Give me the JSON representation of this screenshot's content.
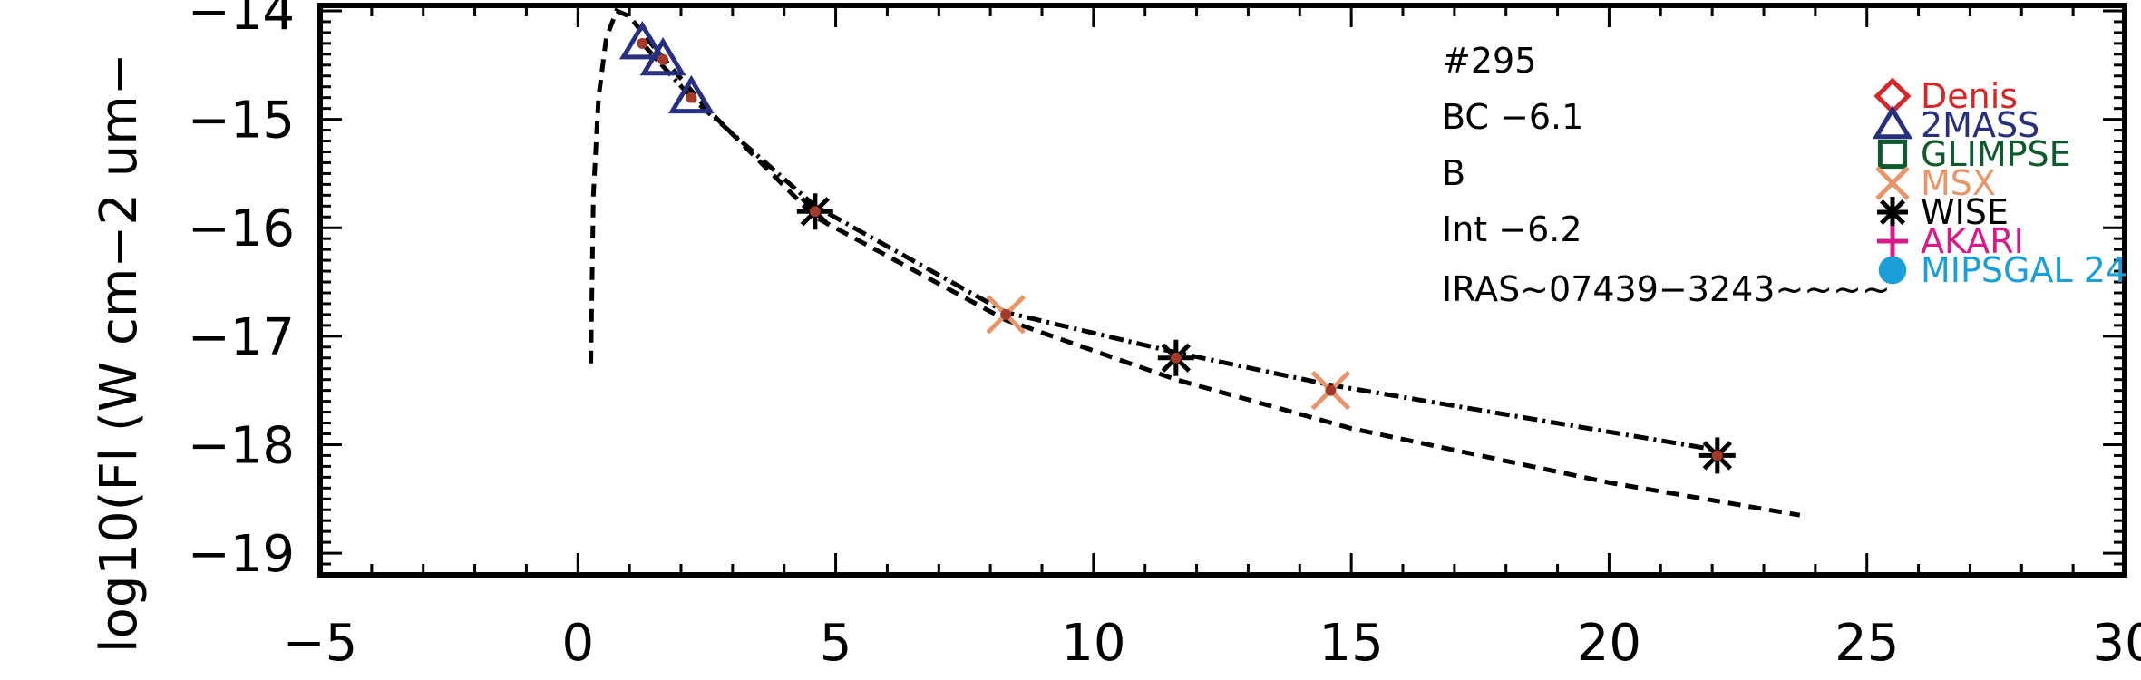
{
  "chart_data": {
    "type": "scatter",
    "title": "",
    "xlabel": "",
    "ylabel": "log10(Fl (W cm−2 um−",
    "xlim": [
      -5,
      30
    ],
    "ylim": [
      -19.2,
      -13.95
    ],
    "x_ticks": [
      "−5",
      "0",
      "5",
      "10",
      "15",
      "20",
      "25",
      "30"
    ],
    "y_ticks": [
      "−14",
      "−15",
      "−16",
      "−17",
      "−18",
      "−19"
    ],
    "annotations": [
      "#295",
      "BC −6.1",
      "B",
      "Int −6.2",
      "IRAS~07439−3243~~~~"
    ],
    "legend_position": "right",
    "legend": [
      {
        "name": "Denis",
        "marker": "diamond",
        "color": "#d62728"
      },
      {
        "name": "2MASS",
        "marker": "triangle",
        "color": "#27307f"
      },
      {
        "name": "GLIMPSE",
        "marker": "square",
        "color": "#0f5a2c"
      },
      {
        "name": "MSX",
        "marker": "x",
        "color": "#e8956a"
      },
      {
        "name": "WISE",
        "marker": "asterisk",
        "color": "#000000"
      },
      {
        "name": "AKARI",
        "marker": "plus",
        "color": "#d81b8a"
      },
      {
        "name": "MIPSGAL 24",
        "marker": "circle",
        "color": "#1a9fd8"
      }
    ],
    "series": [
      {
        "name": "2MASS",
        "marker": "triangle",
        "color": "#27307f",
        "points": [
          [
            1.25,
            -14.3
          ],
          [
            1.65,
            -14.45
          ],
          [
            2.2,
            -14.8
          ]
        ]
      },
      {
        "name": "MSX",
        "marker": "x",
        "color": "#e8956a",
        "points": [
          [
            8.3,
            -16.8
          ],
          [
            14.6,
            -17.5
          ]
        ]
      },
      {
        "name": "WISE",
        "marker": "asterisk",
        "color": "#000000",
        "points": [
          [
            4.6,
            -15.85
          ],
          [
            11.6,
            -17.2
          ],
          [
            22.1,
            -18.1
          ]
        ]
      }
    ],
    "lines": [
      {
        "style": "dashed",
        "color": "#000000",
        "points": [
          [
            0.25,
            -17.25
          ],
          [
            0.3,
            -15.7
          ],
          [
            0.4,
            -14.8
          ],
          [
            0.55,
            -14.25
          ],
          [
            0.75,
            -14.0
          ],
          [
            1.0,
            -14.05
          ],
          [
            1.5,
            -14.35
          ],
          [
            2.5,
            -14.9
          ],
          [
            4.6,
            -15.9
          ],
          [
            8.3,
            -16.85
          ],
          [
            11.6,
            -17.4
          ],
          [
            15.0,
            -17.85
          ],
          [
            20.0,
            -18.35
          ],
          [
            23.7,
            -18.65
          ]
        ]
      },
      {
        "style": "dashdot",
        "color": "#000000",
        "points": [
          [
            1.25,
            -14.3
          ],
          [
            2.2,
            -14.8
          ],
          [
            4.6,
            -15.8
          ],
          [
            8.3,
            -16.78
          ],
          [
            11.6,
            -17.15
          ],
          [
            14.6,
            -17.45
          ],
          [
            22.1,
            -18.05
          ]
        ]
      }
    ]
  }
}
